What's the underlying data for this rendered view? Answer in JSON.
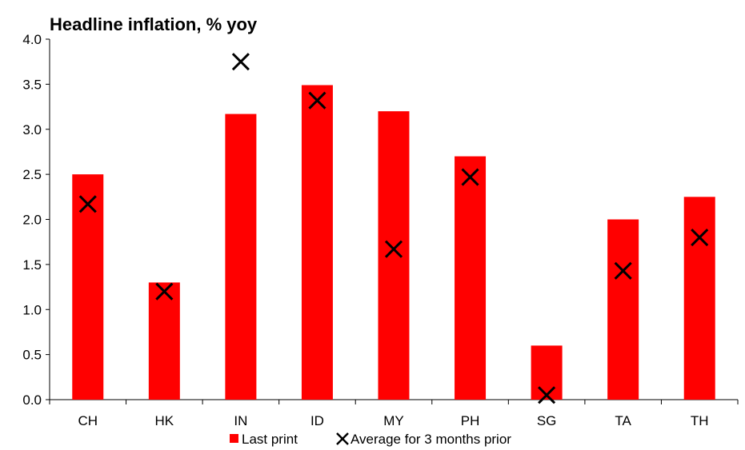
{
  "chart_data": {
    "type": "bar",
    "title": "Headline inflation, % yoy",
    "categories": [
      "CH",
      "HK",
      "IN",
      "ID",
      "MY",
      "PH",
      "SG",
      "TA",
      "TH"
    ],
    "series": [
      {
        "name": "Last print",
        "kind": "bar",
        "color": "#ff0000",
        "values": [
          2.5,
          1.3,
          3.17,
          3.49,
          3.2,
          2.7,
          0.6,
          2.0,
          2.25
        ]
      },
      {
        "name": "Average for 3 months prior",
        "kind": "marker-x",
        "color": "#000000",
        "values": [
          2.17,
          1.2,
          3.75,
          3.32,
          1.67,
          2.47,
          0.05,
          1.43,
          1.8
        ]
      }
    ],
    "yticks": [
      "0.0",
      "0.5",
      "1.0",
      "1.5",
      "2.0",
      "2.5",
      "3.0",
      "3.5",
      "4.0"
    ],
    "ylim": [
      0,
      4
    ],
    "grid": false,
    "legend_position": "bottom"
  }
}
